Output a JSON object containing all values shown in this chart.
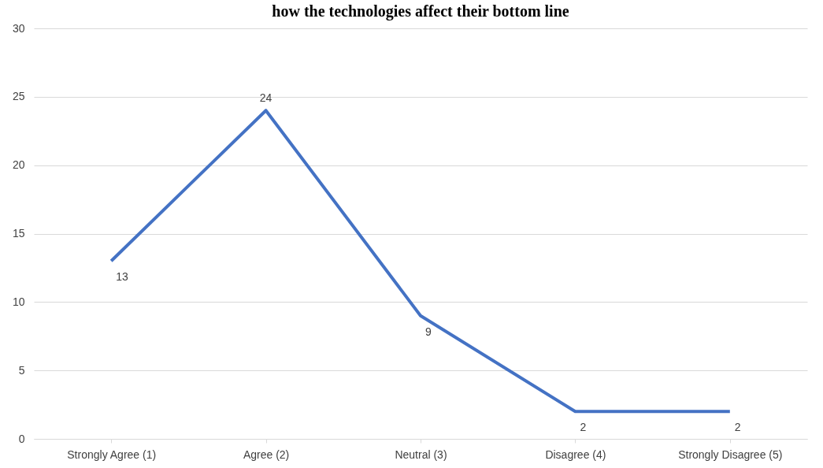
{
  "chart_data": {
    "type": "line",
    "title": "how the technologies affect their bottom line",
    "categories": [
      "Strongly Agree (1)",
      "Agree (2)",
      "Neutral (3)",
      "Disagree (4)",
      "Strongly Disagree (5)"
    ],
    "series": [
      {
        "color": "#4472c4",
        "values": [
          13,
          24,
          9,
          2,
          2
        ]
      }
    ],
    "ylim": [
      0,
      30
    ],
    "yticks": [
      0,
      5,
      10,
      15,
      20,
      25,
      30
    ],
    "grid": "y",
    "data_labels": true,
    "marker": "none",
    "line_style": "solid",
    "legend": false
  }
}
